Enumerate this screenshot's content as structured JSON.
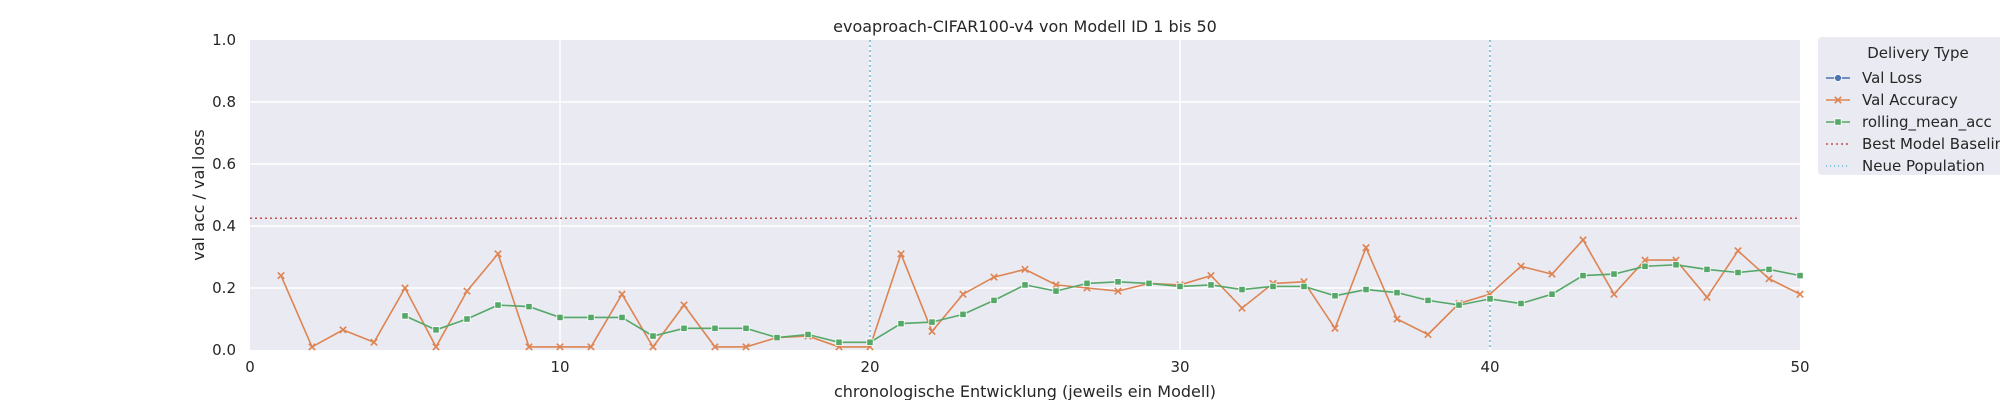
{
  "chart_data": {
    "type": "line",
    "title": "evoaproach-CIFAR100-v4 von Modell ID 1 bis 50",
    "xlabel": "chronologische Entwicklung (jeweils ein Modell)",
    "ylabel": "val acc / val loss",
    "xlim": [
      0,
      50
    ],
    "ylim": [
      0,
      1.0
    ],
    "xticks": [
      "0",
      "10",
      "20",
      "30",
      "40",
      "50"
    ],
    "yticks": [
      "0.0",
      "0.2",
      "0.4",
      "0.6",
      "0.8",
      "1.0"
    ],
    "grid": true,
    "legend_position": "outside-right",
    "legend_title": "Delivery Type",
    "colors": {
      "val_loss": "#4c72b0",
      "val_accuracy": "#dd8452",
      "rolling_mean_acc": "#55a868",
      "baseline": "#c44e52",
      "population": "#64b5cd",
      "plot_bg": "#eaeaf2",
      "grid": "#ffffff"
    },
    "series": [
      {
        "name": "Val Loss",
        "marker": "circle",
        "x": [],
        "y": []
      },
      {
        "name": "Val Accuracy",
        "marker": "x",
        "x": [
          1,
          2,
          3,
          4,
          5,
          6,
          7,
          8,
          9,
          10,
          11,
          12,
          13,
          14,
          15,
          16,
          17,
          18,
          19,
          20,
          21,
          22,
          23,
          24,
          25,
          26,
          27,
          28,
          29,
          30,
          31,
          32,
          33,
          34,
          35,
          36,
          37,
          38,
          39,
          40,
          41,
          42,
          43,
          44,
          45,
          46,
          47,
          48,
          49,
          50
        ],
        "y": [
          0.24,
          0.01,
          0.065,
          0.025,
          0.2,
          0.01,
          0.19,
          0.31,
          0.01,
          0.01,
          0.01,
          0.18,
          0.01,
          0.145,
          0.01,
          0.01,
          0.04,
          0.045,
          0.01,
          0.01,
          0.31,
          0.06,
          0.18,
          0.235,
          0.26,
          0.21,
          0.2,
          0.19,
          0.215,
          0.21,
          0.24,
          0.135,
          0.215,
          0.22,
          0.07,
          0.33,
          0.1,
          0.05,
          0.15,
          0.18,
          0.27,
          0.245,
          0.355,
          0.18,
          0.29,
          0.29,
          0.17,
          0.32,
          0.23,
          0.18
        ]
      },
      {
        "name": "rolling_mean_acc",
        "marker": "square",
        "x": [
          5,
          6,
          7,
          8,
          9,
          10,
          11,
          12,
          13,
          14,
          15,
          16,
          17,
          18,
          19,
          20,
          21,
          22,
          23,
          24,
          25,
          26,
          27,
          28,
          29,
          30,
          31,
          32,
          33,
          34,
          35,
          36,
          37,
          38,
          39,
          40,
          41,
          42,
          43,
          44,
          45,
          46,
          47,
          48,
          49,
          50
        ],
        "y": [
          0.11,
          0.065,
          0.1,
          0.145,
          0.14,
          0.105,
          0.105,
          0.105,
          0.045,
          0.07,
          0.07,
          0.07,
          0.04,
          0.05,
          0.025,
          0.025,
          0.085,
          0.09,
          0.115,
          0.16,
          0.21,
          0.19,
          0.215,
          0.22,
          0.215,
          0.205,
          0.21,
          0.195,
          0.205,
          0.205,
          0.175,
          0.195,
          0.185,
          0.16,
          0.145,
          0.165,
          0.15,
          0.18,
          0.24,
          0.245,
          0.27,
          0.275,
          0.26,
          0.25,
          0.26,
          0.24
        ]
      }
    ],
    "baseline": {
      "name": "Best Model Baseline",
      "y": 0.425
    },
    "population_lines": {
      "name": "Neue Population",
      "x": [
        20,
        40
      ]
    }
  }
}
